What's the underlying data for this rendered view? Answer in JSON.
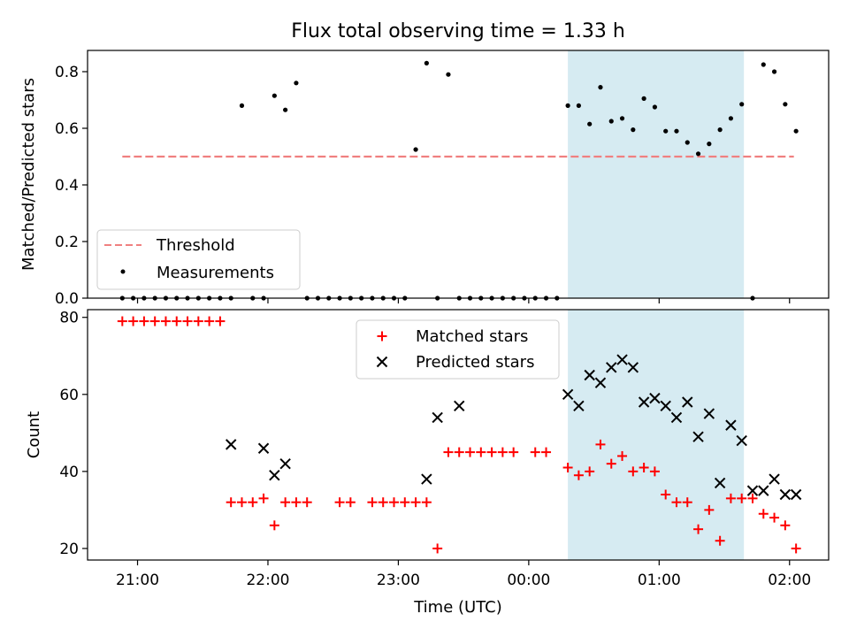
{
  "figure": {
    "title": "Flux total observing time = 1.33 h",
    "xlabel": "Time (UTC)",
    "xticks": [
      "21:00",
      "22:00",
      "23:00",
      "00:00",
      "01:00",
      "02:00"
    ]
  },
  "chart_data": [
    {
      "type": "scatter",
      "ylabel": "Matched/Predicted stars",
      "ylim": [
        0.0,
        0.875
      ],
      "yticks": [
        "0.0",
        "0.2",
        "0.4",
        "0.6",
        "0.8"
      ],
      "xlim": [
        "20:37",
        "02:18"
      ],
      "shaded_region": {
        "x": [
          "00:18",
          "01:39"
        ],
        "color": "#add8e6"
      },
      "legend": {
        "placement": "lower-left",
        "entries": [
          "Threshold",
          "Measurements"
        ]
      },
      "series": [
        {
          "name": "Threshold",
          "style": "dashed-line",
          "color": "#f08080",
          "x": [
            "20:53",
            "02:02"
          ],
          "y": [
            0.5,
            0.5
          ]
        },
        {
          "name": "Measurements",
          "style": "dot",
          "color": "#000000",
          "x": [
            "20:53",
            "20:58",
            "21:03",
            "21:08",
            "21:13",
            "21:18",
            "21:23",
            "21:28",
            "21:33",
            "21:38",
            "21:43",
            "21:48",
            "21:53",
            "21:58",
            "22:03",
            "22:08",
            "22:13",
            "22:18",
            "22:23",
            "22:28",
            "22:33",
            "22:38",
            "22:43",
            "22:48",
            "22:53",
            "22:58",
            "23:03",
            "23:08",
            "23:13",
            "23:18",
            "23:23",
            "23:28",
            "23:33",
            "23:38",
            "23:43",
            "23:48",
            "23:53",
            "23:58",
            "00:03",
            "00:08",
            "00:13",
            "00:18",
            "00:23",
            "00:28",
            "00:33",
            "00:38",
            "00:43",
            "00:48",
            "00:53",
            "00:58",
            "01:03",
            "01:08",
            "01:13",
            "01:18",
            "01:23",
            "01:28",
            "01:33",
            "01:38",
            "01:43",
            "01:48",
            "01:53",
            "01:58",
            "02:03"
          ],
          "y": [
            0,
            0,
            0,
            0,
            0,
            0,
            0,
            0,
            0,
            0,
            0,
            0.68,
            0,
            0,
            0.715,
            0.665,
            0.76,
            0,
            0,
            0,
            0,
            0,
            0,
            0,
            0,
            0,
            0,
            0.525,
            0.83,
            0,
            0.79,
            0,
            0,
            0,
            0,
            0,
            0,
            0,
            0,
            0,
            0,
            0.68,
            0.68,
            0.615,
            0.745,
            0.625,
            0.635,
            0.595,
            0.705,
            0.675,
            0.59,
            0.59,
            0.55,
            0.51,
            0.545,
            0.595,
            0.635,
            0.685,
            0,
            0.825,
            0.8,
            0.685,
            0.59
          ]
        }
      ]
    },
    {
      "type": "scatter",
      "ylabel": "Count",
      "ylim": [
        17,
        82
      ],
      "yticks": [
        "20",
        "40",
        "60",
        "80"
      ],
      "xlim": [
        "20:37",
        "02:18"
      ],
      "shaded_region": {
        "x": [
          "00:18",
          "01:39"
        ],
        "color": "#add8e6"
      },
      "legend": {
        "placement": "upper-center",
        "entries": [
          "Matched stars",
          "Predicted stars"
        ]
      },
      "series": [
        {
          "name": "Matched stars",
          "marker": "+",
          "color": "#ff0000",
          "x": [
            "20:53",
            "20:58",
            "21:03",
            "21:08",
            "21:13",
            "21:18",
            "21:23",
            "21:28",
            "21:33",
            "21:38",
            "21:43",
            "21:48",
            "21:53",
            "21:58",
            "22:03",
            "22:08",
            "22:13",
            "22:18",
            "22:33",
            "22:38",
            "22:48",
            "22:53",
            "22:58",
            "23:03",
            "23:08",
            "23:13",
            "23:18",
            "23:23",
            "23:28",
            "23:33",
            "23:38",
            "23:43",
            "23:48",
            "23:53",
            "24:03",
            "24:08",
            "24:18",
            "24:23",
            "24:28",
            "24:33",
            "24:38",
            "24:43",
            "24:48",
            "24:53",
            "24:58",
            "25:03",
            "25:08",
            "25:13",
            "25:18",
            "25:23",
            "25:28",
            "25:33",
            "25:38",
            "25:43",
            "25:48",
            "25:53",
            "25:58",
            "26:03"
          ],
          "y": [
            79,
            79,
            79,
            79,
            79,
            79,
            79,
            79,
            79,
            79,
            32,
            32,
            32,
            33,
            26,
            32,
            32,
            32,
            32,
            32,
            32,
            32,
            32,
            32,
            32,
            32,
            20,
            45,
            45,
            45,
            45,
            45,
            45,
            45,
            45,
            45,
            41,
            39,
            40,
            47,
            42,
            44,
            40,
            41,
            40,
            34,
            32,
            32,
            25,
            30,
            22,
            33,
            33,
            33,
            29,
            28,
            26,
            20
          ]
        },
        {
          "name": "Predicted stars",
          "marker": "x",
          "color": "#000000",
          "x": [
            "21:43",
            "21:58",
            "22:03",
            "22:08",
            "23:13",
            "23:18",
            "23:28",
            "24:18",
            "24:23",
            "24:28",
            "24:33",
            "24:38",
            "24:43",
            "24:48",
            "24:53",
            "24:58",
            "25:03",
            "25:08",
            "25:13",
            "25:18",
            "25:23",
            "25:28",
            "25:33",
            "25:38",
            "25:43",
            "25:48",
            "25:53",
            "25:58",
            "26:03"
          ],
          "y": [
            47,
            46,
            39,
            42,
            38,
            54,
            57,
            60,
            57,
            65,
            63,
            67,
            69,
            67,
            58,
            59,
            57,
            54,
            58,
            49,
            55,
            37,
            52,
            48,
            35,
            35,
            38,
            34,
            34
          ]
        }
      ]
    }
  ]
}
